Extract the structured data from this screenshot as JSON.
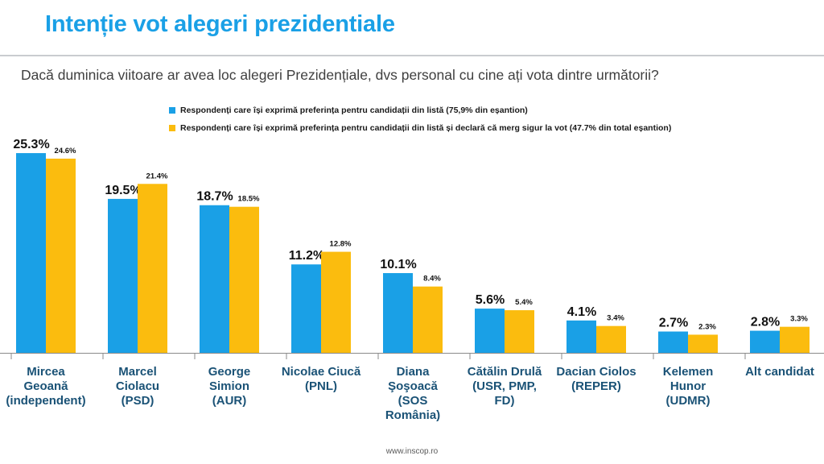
{
  "title": "Intenție vot alegeri prezidentiale",
  "question": "Dacă duminica viitoare ar avea loc alegeri Prezidențiale, dvs personal cu cine ați vota dintre următorii?",
  "footer": "www.inscop.ro",
  "colors": {
    "title": "#1aa0e6",
    "series_blue": "#1aa0e6",
    "series_orange": "#fbbc0e"
  },
  "chart_data": {
    "type": "bar",
    "categories": [
      [
        "Mircea",
        "Geoană",
        "(independent)"
      ],
      [
        "Marcel",
        "Ciolacu",
        "(PSD)"
      ],
      [
        "George",
        "Simion",
        "(AUR)"
      ],
      [
        "Nicolae Ciucă",
        "(PNL)"
      ],
      [
        "Diana",
        "Şoşoacă",
        "(SOS",
        "România)"
      ],
      [
        "Cătălin Drulă",
        "(USR, PMP,",
        "FD)"
      ],
      [
        "Dacian Ciolos",
        "(REPER)"
      ],
      [
        "Kelemen",
        "Hunor",
        "(UDMR)"
      ],
      [
        "Alt candidat"
      ]
    ],
    "series": [
      {
        "name": "Respondenți care își exprimă preferința pentru candidații din listă (75,9% din eșantion)",
        "values": [
          25.3,
          19.5,
          18.7,
          11.2,
          10.1,
          5.6,
          4.1,
          2.7,
          2.8
        ],
        "labels": [
          "25.3%",
          "19.5%",
          "18.7%",
          "11.2%",
          "10.1%",
          "5.6%",
          "4.1%",
          "2.7%",
          "2.8%"
        ]
      },
      {
        "name": "Respondenți care își exprimă preferința pentru candidații din listă și declară că merg sigur la vot (47.7% din total eșantion)",
        "values": [
          24.6,
          21.4,
          18.5,
          12.8,
          8.4,
          5.4,
          3.4,
          2.3,
          3.3
        ],
        "labels": [
          "24.6%",
          "21.4%",
          "18.5%",
          "12.8%",
          "8.4%",
          "5.4%",
          "3.4%",
          "2.3%",
          "3.3%"
        ]
      }
    ],
    "ylim": [
      0,
      30
    ],
    "grid": false,
    "legend_position": "top"
  }
}
